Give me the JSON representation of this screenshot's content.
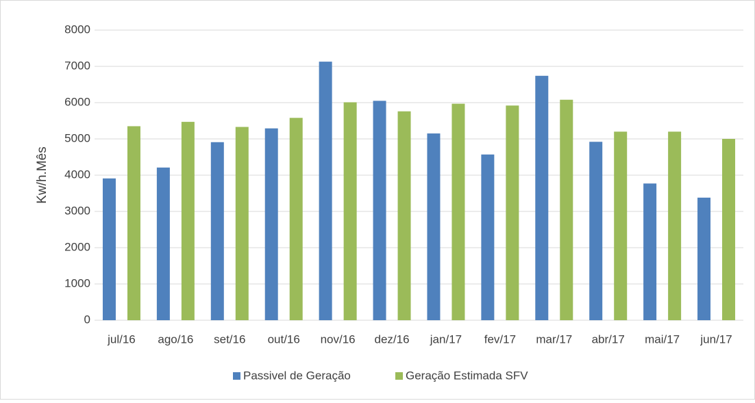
{
  "chart_data": {
    "type": "bar",
    "ylabel": "Kw/h.Mês",
    "categories": [
      "jul/16",
      "ago/16",
      "set/16",
      "out/16",
      "nov/16",
      "dez/16",
      "jan/17",
      "fev/17",
      "mar/17",
      "abr/17",
      "mai/17",
      "jun/17"
    ],
    "series": [
      {
        "name": "Passivel de Geração",
        "color": "#4f81bd",
        "values": [
          3910,
          4210,
          4910,
          5290,
          7130,
          6050,
          5150,
          4570,
          6740,
          4920,
          3770,
          3380
        ]
      },
      {
        "name": "Geração Estimada SFV",
        "color": "#9bbb59",
        "values": [
          5350,
          5470,
          5330,
          5580,
          6010,
          5760,
          5970,
          5920,
          6080,
          5200,
          5200,
          5000
        ]
      }
    ],
    "ylim": [
      0,
      8000
    ],
    "yticks": [
      0,
      1000,
      2000,
      3000,
      4000,
      5000,
      6000,
      7000,
      8000
    ],
    "grid": true,
    "legend": "bottom"
  }
}
